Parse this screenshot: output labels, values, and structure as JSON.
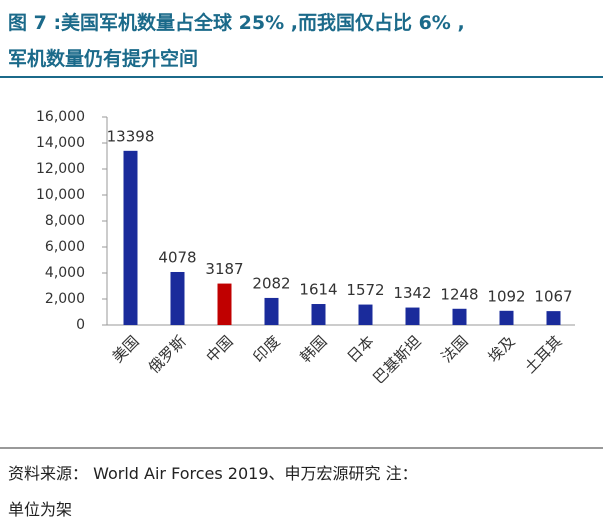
{
  "chart_data": {
    "type": "bar",
    "title": [
      "图 7 :美国军机数量占全球 25% ,而我国仅占比 6% ,",
      "军机数量仍有提升空间"
    ],
    "source": [
      "资料来源： World Air Forces 2019、申万宏源研究 注：",
      "单位为架"
    ],
    "categories": [
      "美国",
      "俄罗斯",
      "中国",
      "印度",
      "韩国",
      "日本",
      "巴基斯坦",
      "法国",
      "埃及",
      "土耳其"
    ],
    "values": [
      13398,
      4078,
      3187,
      2082,
      1614,
      1572,
      1342,
      1248,
      1092,
      1067
    ],
    "colors": [
      "#1a2b9b",
      "#1a2b9b",
      "#c00000",
      "#1a2b9b",
      "#1a2b9b",
      "#1a2b9b",
      "#1a2b9b",
      "#1a2b9b",
      "#1a2b9b",
      "#1a2b9b"
    ],
    "ylim": [
      0,
      16000
    ],
    "yticks": [
      0,
      {
        "value": 2000,
        "label": "2,000"
      },
      {
        "value": 4000,
        "label": "4,000"
      },
      {
        "value": 6000,
        "label": "6,000"
      },
      {
        "value": 8000,
        "label": "8,000"
      },
      {
        "value": 10000,
        "label": "10,000"
      },
      {
        "value": 12000,
        "label": "12,000"
      },
      {
        "value": 14000,
        "label": "14,000"
      },
      {
        "value": 16000,
        "label": "16,000"
      }
    ],
    "grid": false
  }
}
